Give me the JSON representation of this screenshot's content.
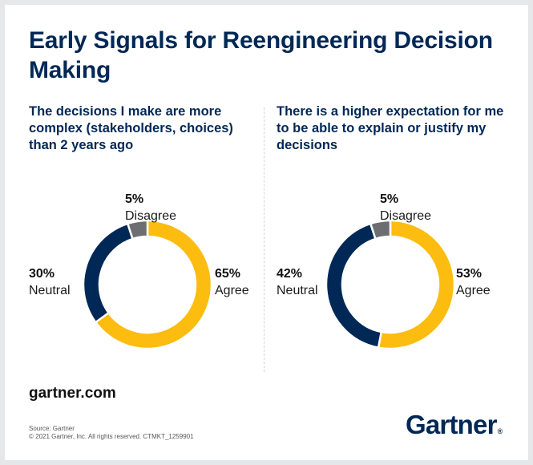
{
  "title": "Early Signals for Reengineering Decision Making",
  "footer": {
    "url": "gartner.com",
    "source": "Source: Gartner",
    "copyright": "© 2021 Gartner, Inc. All rights reserved. CTMKT_1259901",
    "logo": "Gartner",
    "logo_mark": "®"
  },
  "colors": {
    "agree": "#fcbc10",
    "neutral": "#002856",
    "disagree": "#6d6e71",
    "title": "#002856"
  },
  "chart_data": [
    {
      "type": "pie",
      "donut": true,
      "title": "The decisions I make are more complex (stakeholders, choices) than 2 years ago",
      "categories": [
        "Agree",
        "Neutral",
        "Disagree"
      ],
      "values": [
        65,
        30,
        5
      ],
      "labels": [
        "65%",
        "30%",
        "5%"
      ]
    },
    {
      "type": "pie",
      "donut": true,
      "title": "There is a higher expectation for me to be able to explain or justify my decisions",
      "categories": [
        "Agree",
        "Neutral",
        "Disagree"
      ],
      "values": [
        53,
        42,
        5
      ],
      "labels": [
        "53%",
        "42%",
        "5%"
      ]
    }
  ]
}
